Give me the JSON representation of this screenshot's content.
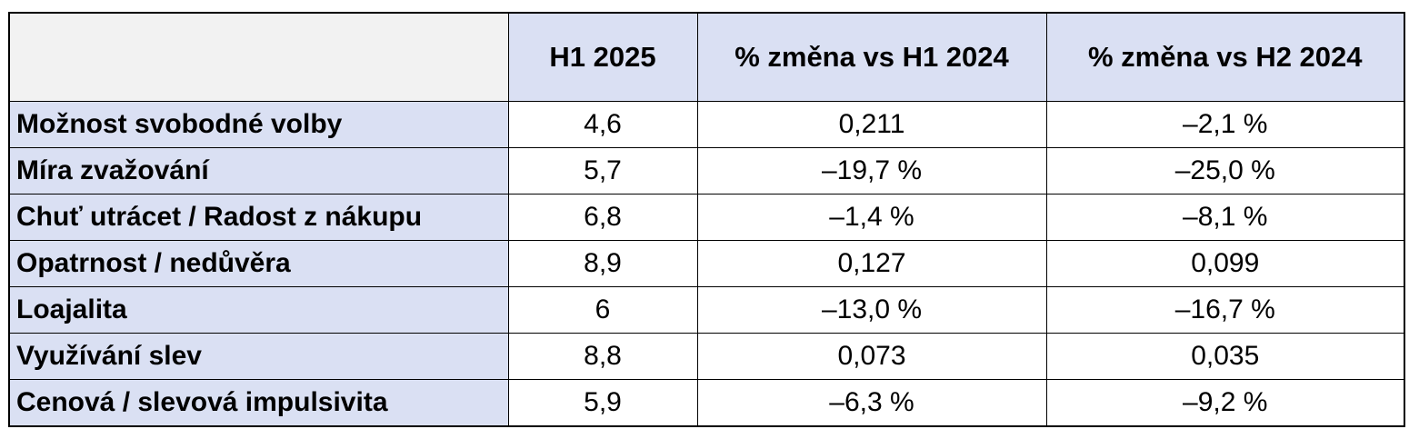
{
  "table": {
    "headers": [
      "",
      "H1 2025",
      "% změna vs H1 2024",
      "% změna vs H2 2024"
    ],
    "rows": [
      {
        "label": "Možnost svobodné volby",
        "h1_2025": "4,6",
        "vs_h1_2024": "0,211",
        "vs_h2_2024": "–2,1 %"
      },
      {
        "label": "Míra zvažování",
        "h1_2025": "5,7",
        "vs_h1_2024": "–19,7 %",
        "vs_h2_2024": "–25,0 %"
      },
      {
        "label": "Chuť utrácet / Radost z nákupu",
        "h1_2025": "6,8",
        "vs_h1_2024": "–1,4 %",
        "vs_h2_2024": "–8,1 %"
      },
      {
        "label": "Opatrnost / nedůvěra",
        "h1_2025": "8,9",
        "vs_h1_2024": "0,127",
        "vs_h2_2024": "0,099"
      },
      {
        "label": "Loajalita",
        "h1_2025": "6",
        "vs_h1_2024": "–13,0 %",
        "vs_h2_2024": "–16,7 %"
      },
      {
        "label": "Využívání slev",
        "h1_2025": "8,8",
        "vs_h1_2024": "0,073",
        "vs_h2_2024": "0,035"
      },
      {
        "label": "Cenová / slevová impulsivita",
        "h1_2025": "5,9",
        "vs_h1_2024": "–6,3 %",
        "vs_h2_2024": "–9,2 %"
      }
    ]
  },
  "colors": {
    "header_fill": "#dae0f3",
    "corner_fill": "#f2f2f2",
    "border": "#000000"
  }
}
